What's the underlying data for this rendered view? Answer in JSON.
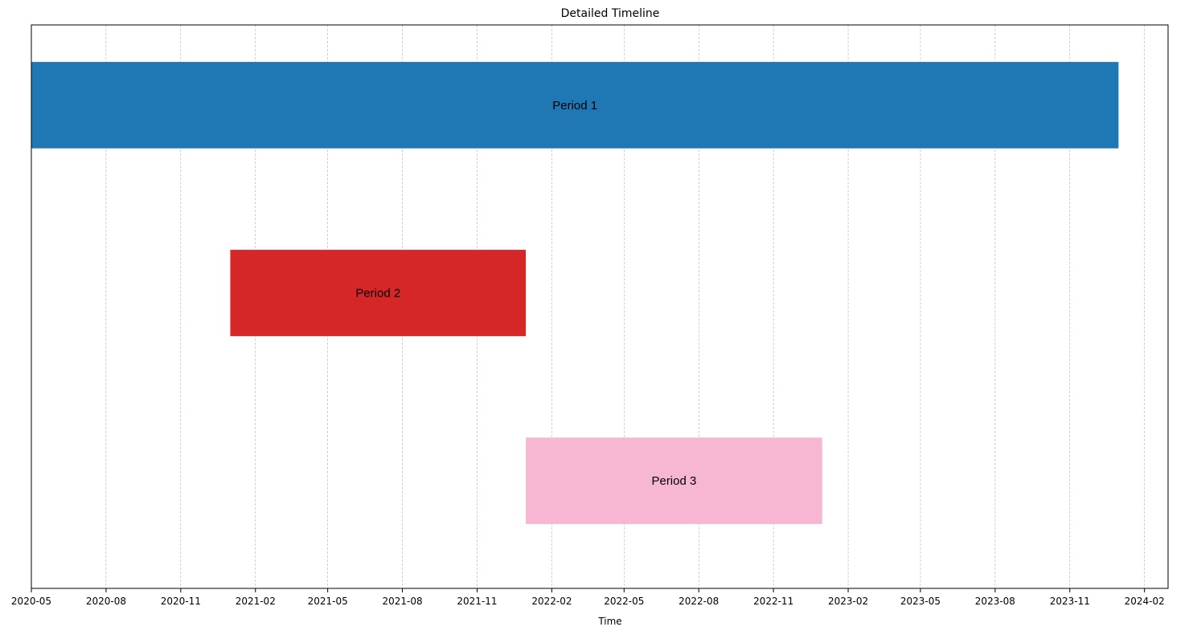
{
  "chart_data": {
    "type": "bar",
    "orientation": "horizontal-timeline",
    "title": "Detailed Timeline",
    "xlabel": "Time",
    "ylabel": "",
    "xlim": [
      "2020-05-01",
      "2024-03-01"
    ],
    "x_ticks": [
      "2020-05",
      "2020-08",
      "2020-11",
      "2021-02",
      "2021-05",
      "2021-08",
      "2021-11",
      "2022-02",
      "2022-05",
      "2022-08",
      "2022-11",
      "2023-02",
      "2023-05",
      "2023-08",
      "2023-11",
      "2024-02"
    ],
    "grid": {
      "x": true,
      "y": false,
      "style": "dashed"
    },
    "y_ticks_visible": false,
    "periods": [
      {
        "name": "Period 1",
        "start": "2020-05-01",
        "end": "2023-12-31",
        "color": "#1f77b4"
      },
      {
        "name": "Period 2",
        "start": "2021-01-01",
        "end": "2021-12-31",
        "color": "#d62728"
      },
      {
        "name": "Period 3",
        "start": "2021-12-31",
        "end": "2022-12-31",
        "color": "#f7b6d2"
      }
    ]
  }
}
